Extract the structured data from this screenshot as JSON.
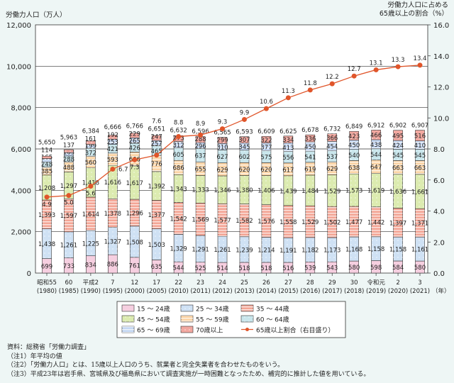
{
  "chart_data": {
    "type": "bar",
    "stacked": true,
    "left_axis_label": "労働力人口（万人）",
    "right_axis_label": [
      "労働力人口に占める",
      "65歳以上の割合（%）"
    ],
    "x_unit_label": "（年）",
    "ylim": [
      0,
      12000
    ],
    "y_ticks": [
      "0",
      "2,000",
      "4,000",
      "6,000",
      "8,000",
      "10,000",
      "12,000"
    ],
    "y2lim": [
      0,
      16
    ],
    "y2_ticks": [
      "0.0",
      "2.0",
      "4.0",
      "6.0",
      "8.0",
      "10.0",
      "12.0",
      "14.0",
      "16.0"
    ],
    "grid": "horizontal at 2,000 intervals",
    "categories": [
      {
        "era": "昭和55",
        "year": "(1980)"
      },
      {
        "era": "60",
        "year": "(1985)"
      },
      {
        "era": "平成2",
        "year": "(1990)"
      },
      {
        "era": "7",
        "year": "(1995)"
      },
      {
        "era": "12",
        "year": "(2000)"
      },
      {
        "era": "17",
        "year": "(2005)"
      },
      {
        "era": "22",
        "year": "(2010)"
      },
      {
        "era": "23",
        "year": "(2011)"
      },
      {
        "era": "24",
        "year": "(2012)"
      },
      {
        "era": "25",
        "year": "(2013)"
      },
      {
        "era": "26",
        "year": "(2014)"
      },
      {
        "era": "27",
        "year": "(2015)"
      },
      {
        "era": "28",
        "year": "(2016)"
      },
      {
        "era": "29",
        "year": "(2017)"
      },
      {
        "era": "30",
        "year": "(2018)"
      },
      {
        "era": "令和元",
        "year": "(2019)"
      },
      {
        "era": "2",
        "year": "(2020)"
      },
      {
        "era": "3",
        "year": "(2021)"
      }
    ],
    "series": [
      {
        "name": "15 ～ 24歳",
        "color": "#f6cfe0",
        "pattern": "plain",
        "values": [
          699,
          733,
          834,
          886,
          761,
          635,
          544,
          525,
          514,
          518,
          518,
          516,
          539,
          543,
          580,
          598,
          584,
          580
        ]
      },
      {
        "name": "25 ～ 34歳",
        "color": "#cfe1f4",
        "pattern": "dots",
        "values": [
          1438,
          1261,
          1225,
          1327,
          1508,
          1503,
          1329,
          1291,
          1261,
          1239,
          1214,
          1191,
          1182,
          1173,
          1168,
          1158,
          1158,
          1161
        ]
      },
      {
        "name": "35 ～ 44歳",
        "color": "#f3a595",
        "pattern": "stripes",
        "values": [
          1393,
          1597,
          1614,
          1378,
          1296,
          1377,
          1542,
          1569,
          1577,
          1582,
          1576,
          1558,
          1529,
          1502,
          1477,
          1442,
          1397,
          1371
        ]
      },
      {
        "name": "45 ～ 54歳",
        "color": "#dcebb0",
        "pattern": "dots",
        "values": [
          1208,
          1297,
          1418,
          1616,
          1617,
          1392,
          1343,
          1333,
          1346,
          1380,
          1406,
          1439,
          1484,
          1529,
          1573,
          1619,
          1636,
          1661
        ]
      },
      {
        "name": "55 ～ 59歳",
        "color": "#fbd3a4",
        "pattern": "stripes",
        "values": [
          385,
          488,
          560,
          593,
          666,
          776,
          686,
          655,
          629,
          620,
          620,
          617,
          619,
          629,
          638,
          647,
          663,
          663
        ]
      },
      {
        "name": "60 ～ 64歳",
        "color": "#c9e6ec",
        "pattern": "dots",
        "values": [
          248,
          288,
          372,
          421,
          426,
          465,
          605,
          637,
          627,
          602,
          575,
          556,
          541,
          537,
          540,
          544,
          545,
          545
        ]
      },
      {
        "name": "65 ～ 69歳",
        "color": "#c3d6f2",
        "pattern": "stripes",
        "values": [
          165,
          163,
          199,
          253,
          265,
          257,
          312,
          296,
          310,
          345,
          377,
          413,
          450,
          454,
          450,
          438,
          424,
          410
        ]
      },
      {
        "name": "70歳以上",
        "color": "#f2a8a0",
        "pattern": "dots",
        "values": [
          114,
          137,
          161,
          192,
          229,
          247,
          273,
          288,
          299,
          307,
          322,
          334,
          336,
          366,
          423,
          466,
          495,
          516
        ]
      }
    ],
    "totals": [
      5650,
      5963,
      6384,
      6666,
      6766,
      6651,
      6632,
      6596,
      6565,
      6593,
      6609,
      6625,
      6678,
      6732,
      6849,
      6912,
      6902,
      6907
    ],
    "line": {
      "name": "65歳以上割合（右目盛り）",
      "color": "#e0552a",
      "axis": "right",
      "values": [
        4.9,
        5.0,
        5.6,
        6.7,
        7.3,
        7.6,
        8.8,
        8.9,
        9.3,
        9.9,
        10.6,
        11.3,
        11.8,
        12.2,
        12.7,
        13.1,
        13.3,
        13.4
      ]
    }
  },
  "notes": [
    "資料：総務省「労働力調査」",
    "（注1）年平均の値",
    "（注2）「労働力人口」とは、15歳以上人口のうち、就業者と完全失業者を合わせたものをいう。",
    "（注3）平成23年は岩手県、宮城県及び福島県において調査実施が一時困難となったため、補完的に推計した値を用いている。"
  ]
}
